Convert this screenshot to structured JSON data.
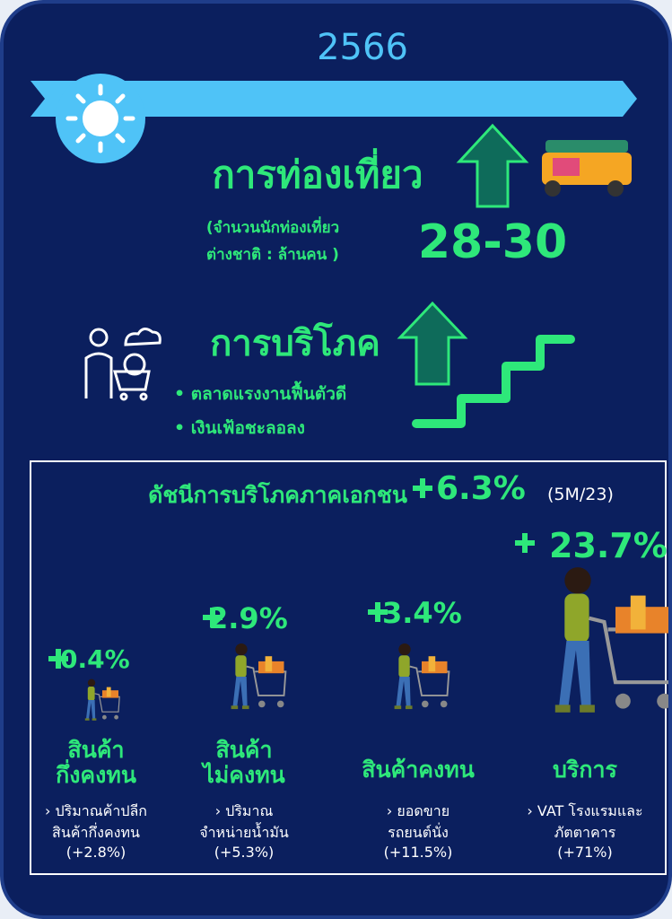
{
  "year": "2566",
  "tourism": {
    "title": "การท่องเที่ยว",
    "note": [
      "(จำนวนนักท่องเที่ยว",
      "ต่างชาติ : ล้านคน )"
    ],
    "value": "28-30"
  },
  "consumption": {
    "title": "การบริโภค",
    "bullets": [
      "ตลาดแรงงานฟื้นตัวดี",
      "เงินเฟ้อชะลอลง"
    ]
  },
  "index": {
    "title": "ดัชนีการบริโภคภาคเอกชน",
    "change": "6.3%",
    "period": "(5M/23)",
    "items": [
      {
        "change": "0.4%",
        "name": [
          "สินค้า",
          "กึ่งคงทน"
        ],
        "note": [
          "ปริมาณค้าปลีก",
          "สินค้ากึ่งคงทน",
          "(+2.8%)"
        ]
      },
      {
        "change": "2.9%",
        "name": [
          "สินค้า",
          "ไม่คงทน"
        ],
        "note": [
          "ปริมาณ",
          "จำหน่ายน้ำมัน",
          "(+5.3%)"
        ]
      },
      {
        "change": "3.4%",
        "name": [
          "สินค้าคงทน"
        ],
        "note": [
          "ยอดขาย",
          "รถยนต์นั่ง",
          "(+11.5%)"
        ]
      },
      {
        "change": "23.7%",
        "name": [
          "บริการ"
        ],
        "note": [
          "VAT โรงแรมและ",
          "ภัตตาคาร",
          "(+71%)"
        ]
      }
    ]
  }
}
